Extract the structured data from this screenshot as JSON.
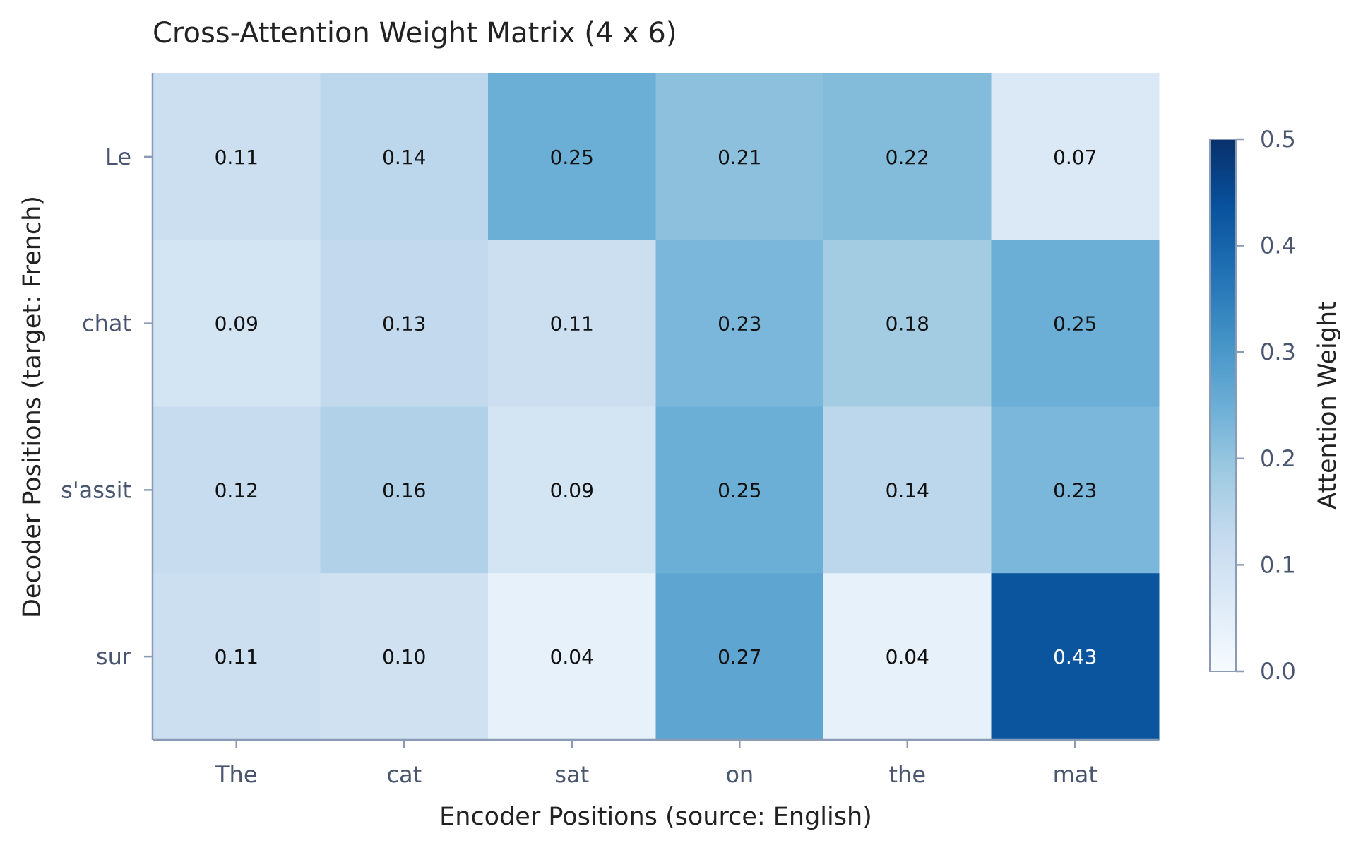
{
  "chart_data": {
    "type": "heatmap",
    "title": "Cross-Attention Weight Matrix (4 x 6)",
    "xlabel": "Encoder Positions (source: English)",
    "ylabel": "Decoder Positions (target: French)",
    "x_categories": [
      "The",
      "cat",
      "sat",
      "on",
      "the",
      "mat"
    ],
    "y_categories": [
      "Le",
      "chat",
      "s'assit",
      "sur"
    ],
    "values": [
      [
        0.11,
        0.14,
        0.25,
        0.21,
        0.22,
        0.07
      ],
      [
        0.09,
        0.13,
        0.11,
        0.23,
        0.18,
        0.25
      ],
      [
        0.12,
        0.16,
        0.09,
        0.25,
        0.14,
        0.23
      ],
      [
        0.11,
        0.1,
        0.04,
        0.27,
        0.04,
        0.43
      ]
    ],
    "value_labels": [
      [
        "0.11",
        "0.14",
        "0.25",
        "0.21",
        "0.22",
        "0.07"
      ],
      [
        "0.09",
        "0.13",
        "0.11",
        "0.23",
        "0.18",
        "0.25"
      ],
      [
        "0.12",
        "0.16",
        "0.09",
        "0.25",
        "0.14",
        "0.23"
      ],
      [
        "0.11",
        "0.10",
        "0.04",
        "0.27",
        "0.04",
        "0.43"
      ]
    ],
    "colorbar": {
      "label": "Attention Weight",
      "range": [
        0.0,
        0.5
      ],
      "ticks": [
        0.0,
        0.1,
        0.2,
        0.3,
        0.4,
        0.5
      ],
      "tick_labels": [
        "0.0",
        "0.1",
        "0.2",
        "0.3",
        "0.4",
        "0.5"
      ],
      "colormap": "Blues",
      "colormap_stops": [
        "#f7fbff",
        "#deebf7",
        "#c6dbef",
        "#9ecae1",
        "#6baed6",
        "#4292c6",
        "#2171b5",
        "#08519c",
        "#08306b"
      ]
    },
    "grid": false,
    "legend": "colorbar-right",
    "colors": {
      "axis_line": "#8c9bb5",
      "tick_label": "#4a5670",
      "title": "#222222",
      "cell_text_dark": "#111111",
      "cell_text_light": "#ffffff"
    }
  }
}
